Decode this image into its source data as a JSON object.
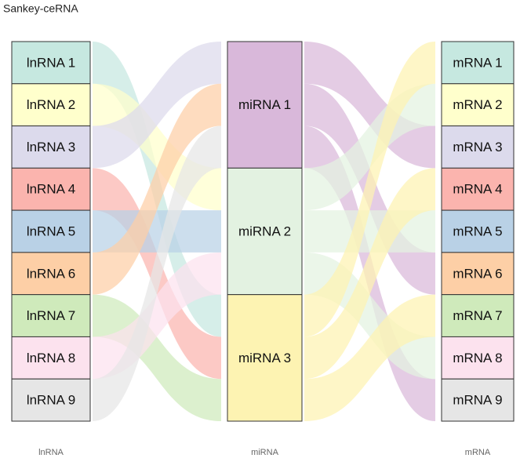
{
  "chart_data": {
    "type": "sankey",
    "title": "Sankey-ceRNA",
    "columns": [
      {
        "label": "lnRNA",
        "nodes": [
          {
            "name": "lnRNA 1",
            "color": "#c6e8e0"
          },
          {
            "name": "lnRNA 2",
            "color": "#ffffcc"
          },
          {
            "name": "lnRNA 3",
            "color": "#dcdaec"
          },
          {
            "name": "lnRNA 4",
            "color": "#fbb4ae"
          },
          {
            "name": "lnRNA 5",
            "color": "#b9d1e6"
          },
          {
            "name": "lnRNA 6",
            "color": "#fdcfa6"
          },
          {
            "name": "lnRNA 7",
            "color": "#cfeabb"
          },
          {
            "name": "lnRNA 8",
            "color": "#fce2ee"
          },
          {
            "name": "lnRNA 9",
            "color": "#e6e6e6"
          }
        ]
      },
      {
        "label": "miRNA",
        "nodes": [
          {
            "name": "miRNA 1",
            "color": "#d9b8da"
          },
          {
            "name": "miRNA 2",
            "color": "#e3f2e1"
          },
          {
            "name": "miRNA 3",
            "color": "#fdf3b2"
          }
        ]
      },
      {
        "label": "mRNA",
        "nodes": [
          {
            "name": "mRNA 1",
            "color": "#c6e8e0"
          },
          {
            "name": "mRNA 2",
            "color": "#ffffcc"
          },
          {
            "name": "mRNA 3",
            "color": "#dcdaec"
          },
          {
            "name": "mRNA 4",
            "color": "#fbb4ae"
          },
          {
            "name": "mRNA 5",
            "color": "#b9d1e6"
          },
          {
            "name": "mRNA 6",
            "color": "#fdcfa6"
          },
          {
            "name": "mRNA 7",
            "color": "#cfeabb"
          },
          {
            "name": "mRNA 8",
            "color": "#fce2ee"
          },
          {
            "name": "mRNA 9",
            "color": "#e6e6e6"
          }
        ]
      }
    ],
    "links": [
      {
        "source": "lnRNA 1",
        "target": "miRNA 3",
        "value": 1
      },
      {
        "source": "lnRNA 2",
        "target": "miRNA 2",
        "value": 1
      },
      {
        "source": "lnRNA 3",
        "target": "miRNA 1",
        "value": 1
      },
      {
        "source": "lnRNA 4",
        "target": "miRNA 3",
        "value": 1
      },
      {
        "source": "lnRNA 5",
        "target": "miRNA 2",
        "value": 1
      },
      {
        "source": "lnRNA 6",
        "target": "miRNA 1",
        "value": 1
      },
      {
        "source": "lnRNA 7",
        "target": "miRNA 3",
        "value": 1
      },
      {
        "source": "lnRNA 8",
        "target": "miRNA 2",
        "value": 1
      },
      {
        "source": "lnRNA 9",
        "target": "miRNA 1",
        "value": 1
      },
      {
        "source": "miRNA 1",
        "target": "mRNA 3",
        "value": 1
      },
      {
        "source": "miRNA 1",
        "target": "mRNA 6",
        "value": 1
      },
      {
        "source": "miRNA 1",
        "target": "mRNA 9",
        "value": 1
      },
      {
        "source": "miRNA 2",
        "target": "mRNA 2",
        "value": 1
      },
      {
        "source": "miRNA 2",
        "target": "mRNA 5",
        "value": 1
      },
      {
        "source": "miRNA 2",
        "target": "mRNA 8",
        "value": 1
      },
      {
        "source": "miRNA 3",
        "target": "mRNA 1",
        "value": 1
      },
      {
        "source": "miRNA 3",
        "target": "mRNA 4",
        "value": 1
      },
      {
        "source": "miRNA 3",
        "target": "mRNA 7",
        "value": 1
      }
    ]
  }
}
